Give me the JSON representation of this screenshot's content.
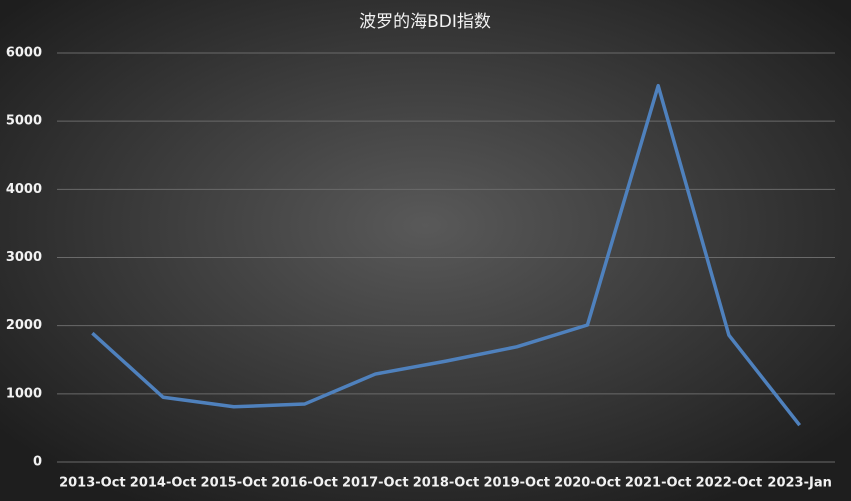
{
  "chart_data": {
    "type": "line",
    "title": "波罗的海BDI指数",
    "categories": [
      "2013-Oct",
      "2014-Oct",
      "2015-Oct",
      "2016-Oct",
      "2017-Oct",
      "2018-Oct",
      "2019-Oct",
      "2020-Oct",
      "2021-Oct",
      "2022-Oct",
      "2023-Jan"
    ],
    "values": [
      1890,
      950,
      810,
      850,
      1290,
      1480,
      1690,
      2010,
      5520,
      1860,
      540
    ],
    "color": "#4f81bd",
    "ylim": [
      0,
      6000
    ],
    "yticks": [
      0,
      1000,
      2000,
      3000,
      4000,
      5000,
      6000
    ],
    "grid": true
  }
}
